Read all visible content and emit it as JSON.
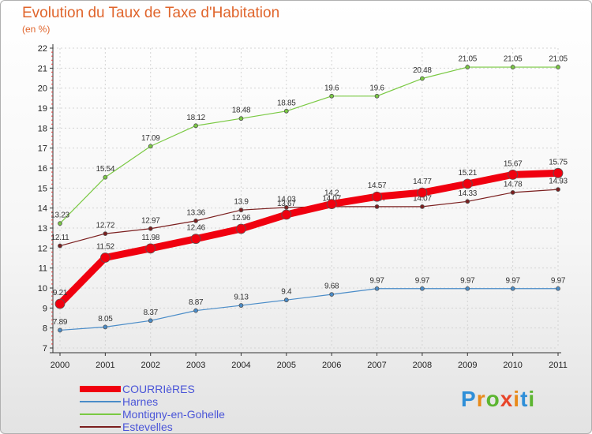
{
  "title": "Evolution du Taux de Taxe d'Habitation",
  "subtitle": "(en %)",
  "logo_text": "Proxiti",
  "chart_data": {
    "type": "line",
    "x": [
      "2000",
      "2001",
      "2002",
      "2003",
      "2004",
      "2005",
      "2006",
      "2007",
      "2008",
      "2009",
      "2010",
      "2011"
    ],
    "ylim": [
      7,
      22
    ],
    "yticks": [
      7,
      8,
      9,
      10,
      11,
      12,
      13,
      14,
      15,
      16,
      17,
      18,
      19,
      20,
      21,
      22
    ],
    "grid": true,
    "legend_position": "bottom-left",
    "series": [
      {
        "name": "Montigny-en-Gohelle",
        "color": "#7ac943",
        "width": 1.2,
        "marker": 5,
        "values": [
          13.23,
          15.54,
          17.09,
          18.12,
          18.48,
          18.85,
          19.6,
          19.6,
          20.48,
          21.05,
          21.05,
          21.05
        ],
        "labels": [
          "13.23",
          "15.54",
          "17.09",
          "18.12",
          "18.48",
          "18.85",
          "19.6",
          "19.6",
          "20.48",
          "21.05",
          "21.05",
          "21.05"
        ]
      },
      {
        "name": "Estevelles",
        "color": "#7b1f1f",
        "width": 1.2,
        "marker": 5,
        "values": [
          12.11,
          12.72,
          12.97,
          13.36,
          13.9,
          14.03,
          14.07,
          14.07,
          14.07,
          14.33,
          14.78,
          14.93
        ],
        "labels": [
          "12.11",
          "12.72",
          "12.97",
          "13.36",
          "13.9",
          "14.03",
          "14.07",
          "14.07",
          "14.07",
          "14.33",
          "14.78",
          "14.93"
        ]
      },
      {
        "name": "Harnes",
        "color": "#4a8cc8",
        "width": 1.2,
        "marker": 5,
        "values": [
          7.89,
          8.05,
          8.37,
          8.87,
          9.13,
          9.4,
          9.68,
          9.97,
          9.97,
          9.97,
          9.97,
          9.97
        ],
        "labels": [
          "7.89",
          "8.05",
          "8.37",
          "8.87",
          "9.13",
          "9.4",
          "9.68",
          "9.97",
          "9.97",
          "9.97",
          "9.97",
          "9.97"
        ]
      },
      {
        "name": "COURRIèRES",
        "color": "#f0000f",
        "width": 9,
        "marker": 12,
        "values": [
          9.21,
          11.52,
          11.98,
          12.46,
          12.96,
          13.67,
          14.2,
          14.57,
          14.77,
          15.21,
          15.67,
          15.75
        ],
        "labels": [
          "9.21",
          "11.52",
          "11.98",
          "12.46",
          "12.96",
          "13.67",
          "14.2",
          "14.57",
          "14.77",
          "15.21",
          "15.67",
          "15.75"
        ]
      }
    ]
  },
  "legend": [
    {
      "label": "COURRIèRES",
      "color": "#f0000f",
      "thickness": 8
    },
    {
      "label": "Harnes",
      "color": "#4a8cc8",
      "thickness": 2
    },
    {
      "label": "Montigny-en-Gohelle",
      "color": "#7ac943",
      "thickness": 2
    },
    {
      "label": "Estevelles",
      "color": "#7b1f1f",
      "thickness": 2
    }
  ]
}
